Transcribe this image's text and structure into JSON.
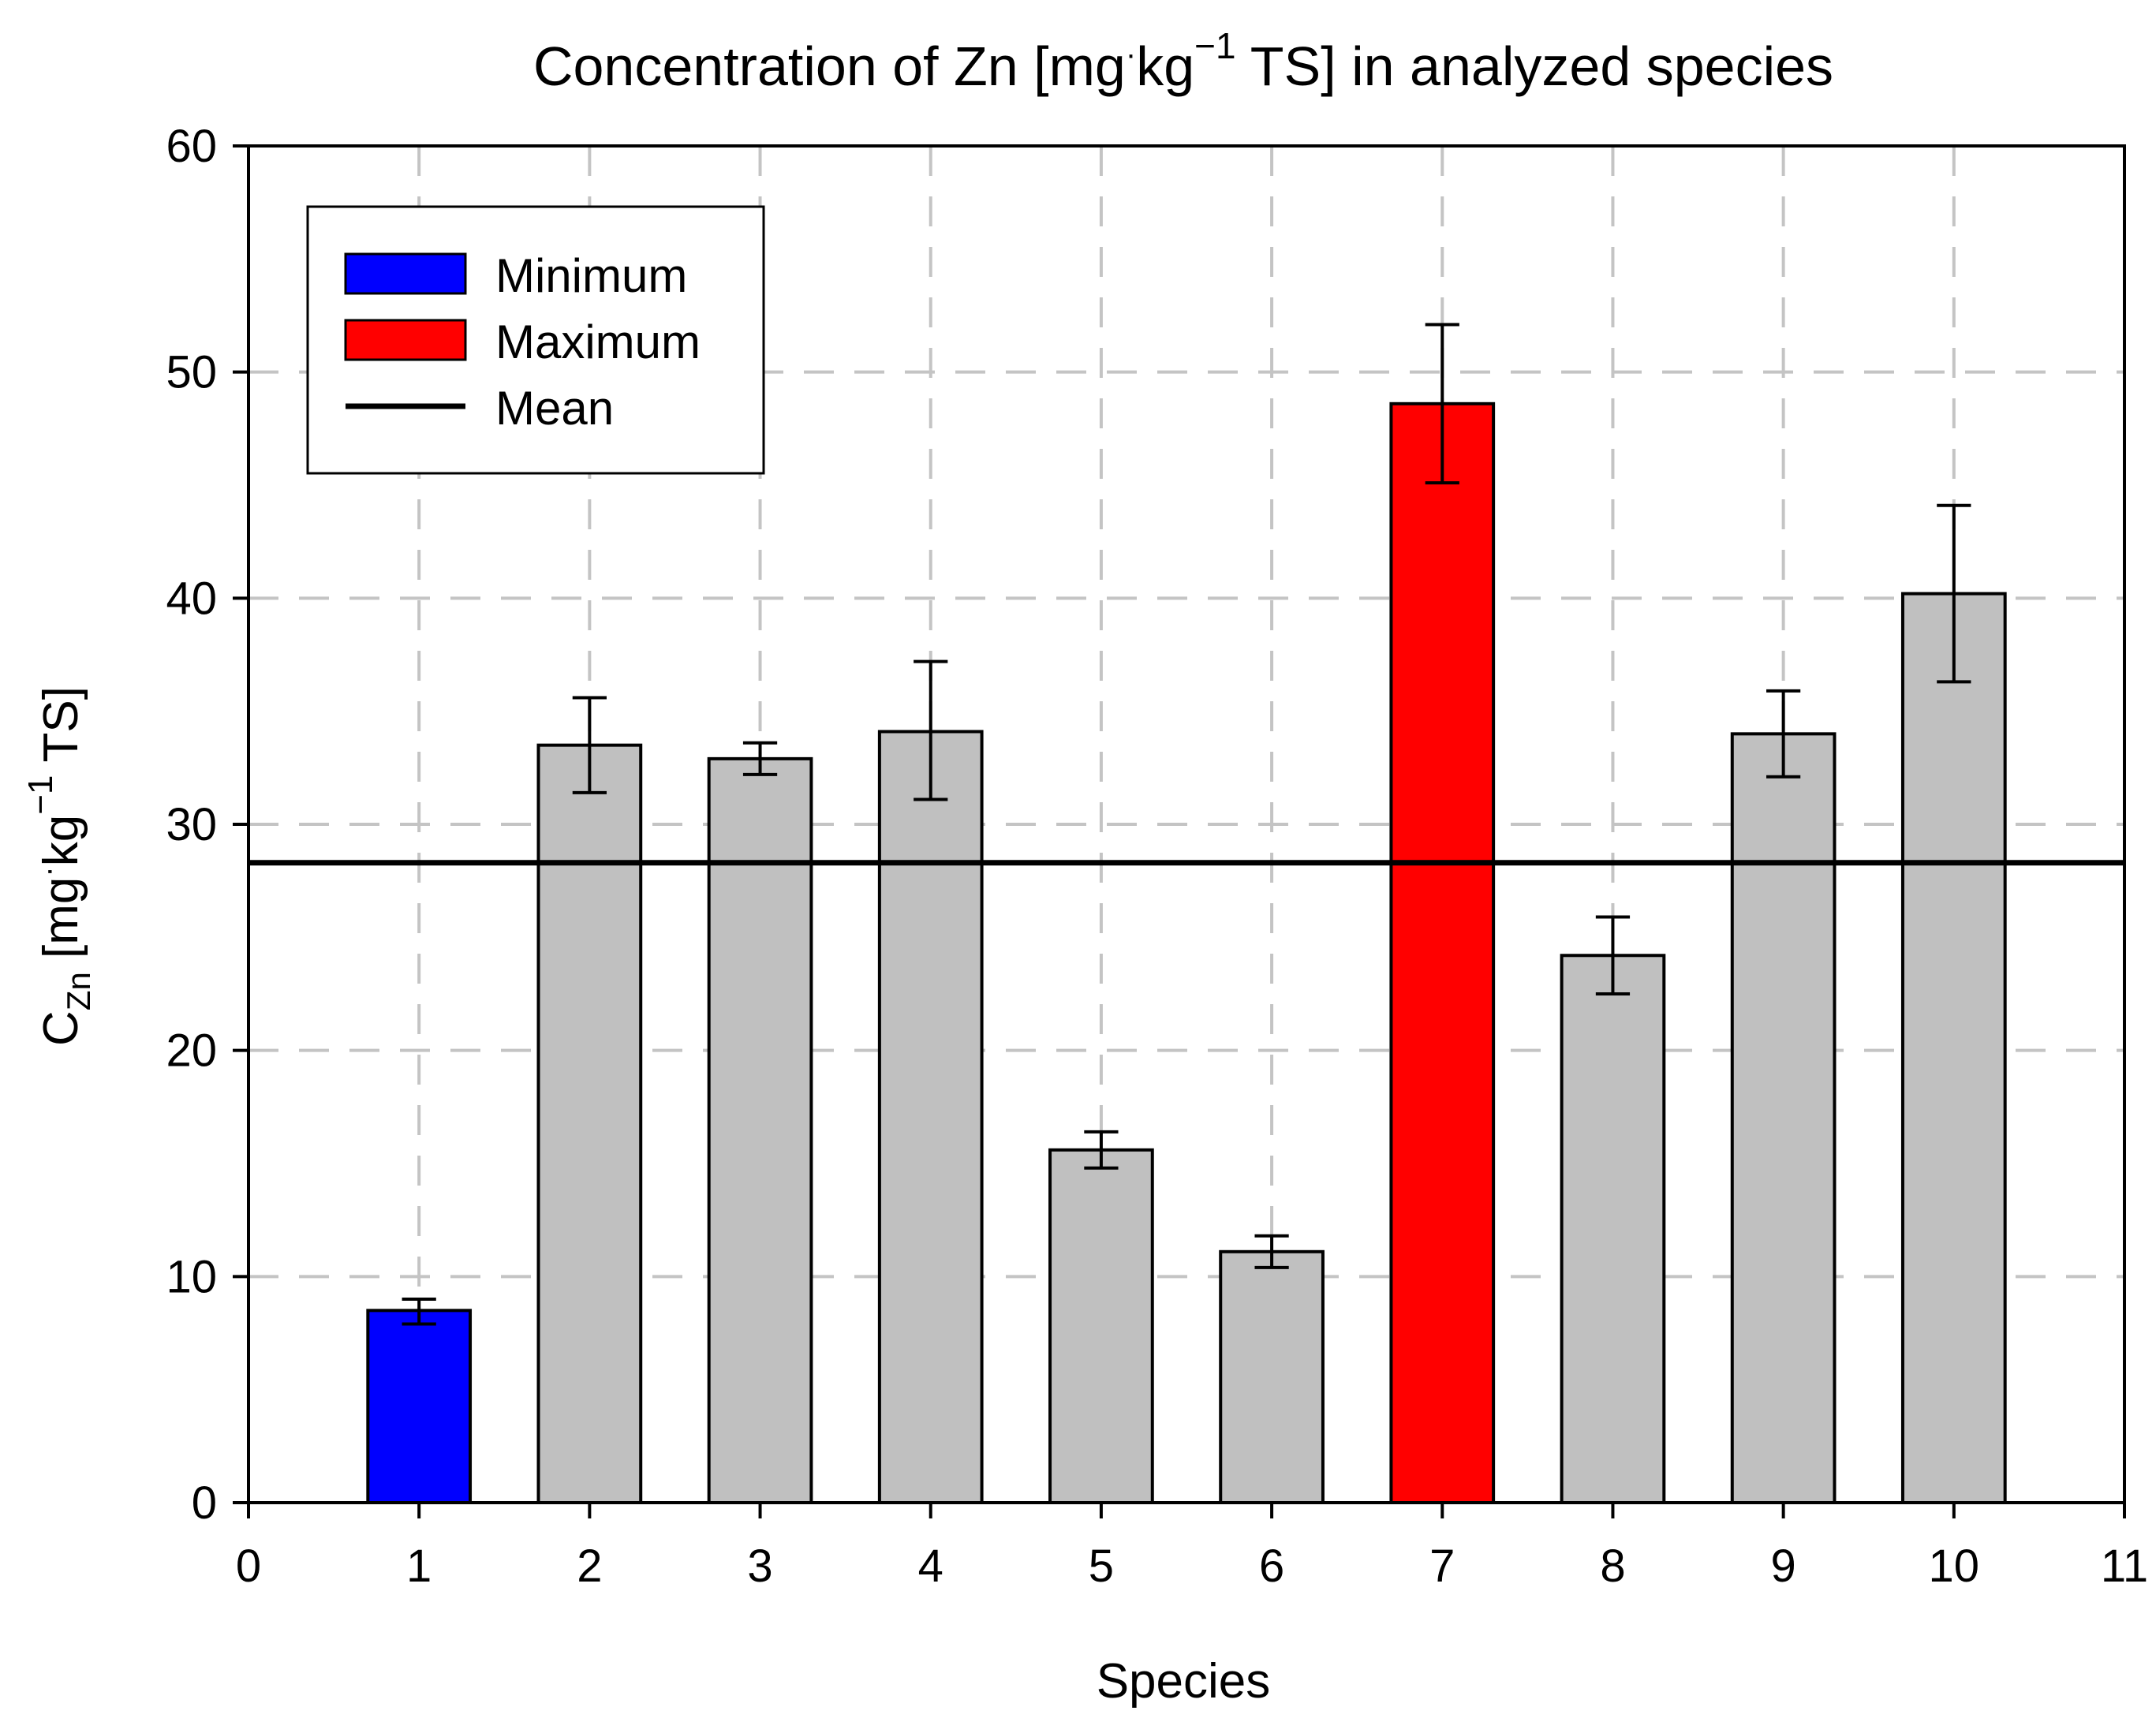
{
  "chart_data": {
    "type": "bar",
    "title": {
      "prefix": "Concentration of Zn [mg",
      "dot": "·",
      "mid": "kg",
      "sup": "−1",
      "suffix": " TS] in analyzed species"
    },
    "xlabel": "Species",
    "ylabel": {
      "main": "C",
      "sub": "Zn",
      "unit_prefix": " [mg",
      "dot": "·",
      "mid": "kg",
      "sup": "−1",
      "unit_suffix": " TS]"
    },
    "xlim": [
      0,
      11
    ],
    "ylim": [
      0,
      60
    ],
    "xticks": [
      0,
      1,
      2,
      3,
      4,
      5,
      6,
      7,
      8,
      9,
      10,
      11
    ],
    "yticks": [
      0,
      10,
      20,
      30,
      40,
      50,
      60
    ],
    "grid": true,
    "categories": [
      1,
      2,
      3,
      4,
      5,
      6,
      7,
      8,
      9,
      10
    ],
    "values": [
      8.5,
      33.5,
      32.9,
      34.1,
      15.6,
      11.1,
      48.6,
      24.2,
      34.0,
      40.2
    ],
    "error_upper": [
      0.5,
      2.1,
      0.7,
      3.1,
      0.8,
      0.7,
      3.5,
      1.7,
      1.9,
      3.9
    ],
    "error_lower": [
      0.6,
      2.1,
      0.7,
      3.0,
      0.8,
      0.7,
      3.5,
      1.7,
      1.9,
      3.9
    ],
    "bar_colors": [
      "#0000ff",
      "#c0c0c0",
      "#c0c0c0",
      "#c0c0c0",
      "#c0c0c0",
      "#c0c0c0",
      "#ff0000",
      "#c0c0c0",
      "#c0c0c0",
      "#c0c0c0"
    ],
    "mean": 28.3,
    "mean_color": "#000000",
    "legend": {
      "position": "top-left",
      "entries": [
        {
          "label": "Minimum",
          "kind": "bar",
          "color": "#0000ff"
        },
        {
          "label": "Maximum",
          "kind": "bar",
          "color": "#ff0000"
        },
        {
          "label": "Mean",
          "kind": "line",
          "color": "#000000"
        }
      ]
    }
  }
}
